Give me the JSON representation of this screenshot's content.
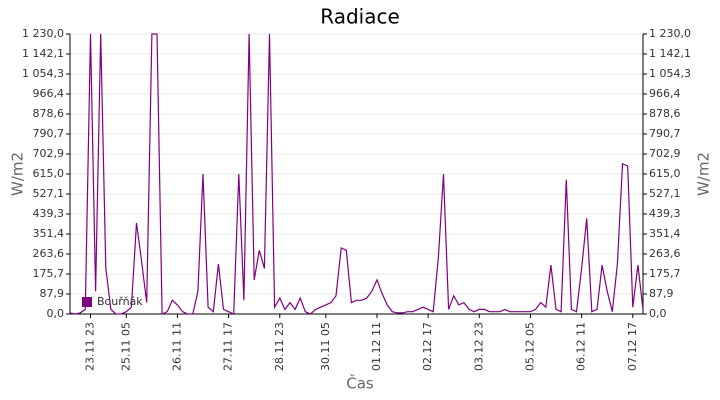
{
  "chart_data": {
    "type": "line",
    "title": "Radiace",
    "xlabel": "Čas",
    "ylabel": "W/m2",
    "legend": "lower left",
    "grid": true,
    "ylim": [
      0,
      1230
    ],
    "yticks": [
      {
        "value": 0,
        "label": "0,0"
      },
      {
        "value": 87.9,
        "label": "87,9"
      },
      {
        "value": 175.7,
        "label": "175,7"
      },
      {
        "value": 263.6,
        "label": "263,6"
      },
      {
        "value": 351.4,
        "label": "351,4"
      },
      {
        "value": 439.3,
        "label": "439,3"
      },
      {
        "value": 527.1,
        "label": "527,1"
      },
      {
        "value": 615,
        "label": "615,0"
      },
      {
        "value": 702.9,
        "label": "702,9"
      },
      {
        "value": 790.7,
        "label": "790,7"
      },
      {
        "value": 878.6,
        "label": "878,6"
      },
      {
        "value": 966.4,
        "label": "966,4"
      },
      {
        "value": 1054.3,
        "label": "1 054,3"
      },
      {
        "value": 1142.1,
        "label": "1 142,1"
      },
      {
        "value": 1230,
        "label": "1 230,0"
      }
    ],
    "categories": [
      null,
      null,
      null,
      null,
      "23.11 23",
      null,
      null,
      null,
      null,
      null,
      null,
      "25.11 05",
      null,
      null,
      null,
      null,
      null,
      null,
      null,
      null,
      null,
      "26.11 11",
      null,
      null,
      null,
      null,
      null,
      null,
      null,
      null,
      null,
      "27.11 17",
      null,
      null,
      null,
      null,
      null,
      null,
      null,
      null,
      null,
      "28.11 23",
      null,
      null,
      null,
      null,
      null,
      null,
      null,
      null,
      "30.11 05",
      null,
      null,
      null,
      null,
      null,
      null,
      null,
      null,
      null,
      "01.12 11",
      null,
      null,
      null,
      null,
      null,
      null,
      null,
      null,
      null,
      "02.12 17",
      null,
      null,
      null,
      null,
      null,
      null,
      null,
      null,
      null,
      "03.12 23",
      null,
      null,
      null,
      null,
      null,
      null,
      null,
      null,
      null,
      "05.12 05",
      null,
      null,
      null,
      null,
      null,
      null,
      null,
      null,
      null,
      "06.12 11",
      null,
      null,
      null,
      null,
      null,
      null,
      null,
      null,
      null,
      "07.12 17",
      null,
      null
    ],
    "series": [
      {
        "name": "Bouřňák",
        "color": "#800080",
        "values": [
          5,
          0,
          5,
          20,
          1230,
          100,
          1230,
          200,
          20,
          0,
          0,
          10,
          30,
          400,
          230,
          50,
          1230,
          1230,
          0,
          10,
          60,
          40,
          10,
          0,
          0,
          100,
          615,
          30,
          10,
          220,
          20,
          10,
          0,
          615,
          60,
          1230,
          150,
          280,
          200,
          1230,
          30,
          70,
          20,
          50,
          20,
          70,
          10,
          0,
          20,
          30,
          40,
          50,
          80,
          290,
          280,
          50,
          60,
          60,
          70,
          100,
          150,
          90,
          40,
          10,
          5,
          5,
          10,
          10,
          20,
          30,
          20,
          10,
          250,
          615,
          20,
          80,
          40,
          50,
          20,
          10,
          20,
          20,
          10,
          10,
          10,
          20,
          10,
          10,
          10,
          10,
          10,
          20,
          50,
          30,
          215,
          20,
          10,
          590,
          20,
          10,
          200,
          420,
          10,
          20,
          215,
          100,
          10,
          220,
          660,
          650,
          30,
          215,
          20
        ]
      }
    ]
  }
}
